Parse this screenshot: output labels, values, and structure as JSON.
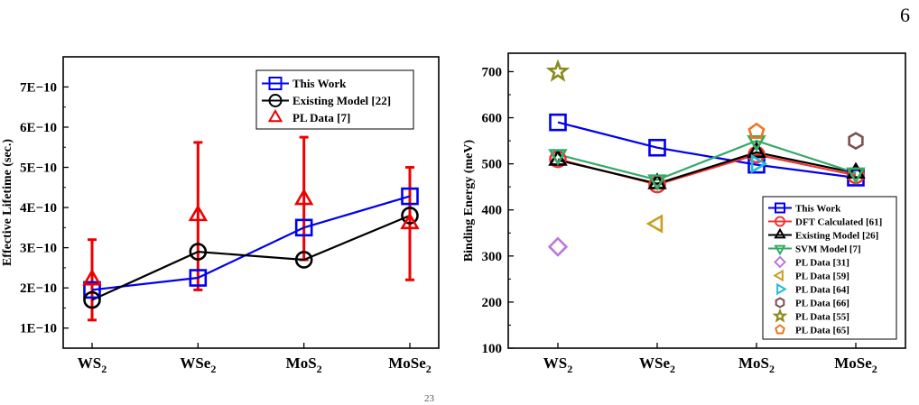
{
  "page": {
    "number": "6",
    "footer": "23"
  },
  "chart_data": [
    {
      "type": "line",
      "categories": [
        "WS2",
        "WSe2",
        "MoS2",
        "MoSe2"
      ],
      "xlabel": "",
      "ylabel": "Effective Lifetime (sec.)",
      "ylim": [
        5e-11,
        7.75e-10
      ],
      "yticks": [
        1e-10,
        2e-10,
        3e-10,
        4e-10,
        5e-10,
        6e-10,
        7e-10
      ],
      "ytick_labels": [
        "1E−10",
        "2E−10",
        "3E−10",
        "4E−10",
        "5E−10",
        "6E−10",
        "7E−10"
      ],
      "legend_position": "top-right",
      "series": [
        {
          "name": "This Work",
          "color": "#0000ee",
          "marker": "square",
          "connected": true,
          "values": [
            1.95e-10,
            2.25e-10,
            3.5e-10,
            4.28e-10
          ]
        },
        {
          "name": "Existing Model [22]",
          "color": "#000000",
          "marker": "circle",
          "connected": true,
          "values": [
            1.7e-10,
            2.9e-10,
            2.7e-10,
            3.8e-10
          ]
        },
        {
          "name": "PL Data [7]",
          "color": "#ee0000",
          "marker": "triangle-up",
          "connected": false,
          "values": [
            2.2e-10,
            3.8e-10,
            4.2e-10,
            3.6e-10
          ],
          "error_low": [
            1.2e-10,
            1.95e-10,
            2.7e-10,
            2.2e-10
          ],
          "error_high": [
            3.2e-10,
            5.62e-10,
            5.75e-10,
            5e-10
          ]
        }
      ]
    },
    {
      "type": "line",
      "categories": [
        "WS2",
        "WSe2",
        "MoS2",
        "MoSe2"
      ],
      "xlabel": "",
      "ylabel": "Binding Energy (meV)",
      "ylim": [
        100,
        740
      ],
      "yticks": [
        100,
        200,
        300,
        400,
        500,
        600,
        700
      ],
      "ytick_labels": [
        "100",
        "200",
        "300",
        "400",
        "500",
        "600",
        "700"
      ],
      "legend_position": "bottom-right",
      "series": [
        {
          "name": "This Work",
          "color": "#0000ee",
          "marker": "square",
          "connected": true,
          "values": [
            590,
            535,
            498,
            470
          ]
        },
        {
          "name": "DFT Calculated [61]",
          "color": "#ee3333",
          "marker": "circle",
          "connected": true,
          "values": [
            510,
            455,
            520,
            475
          ]
        },
        {
          "name": "Existing Model [26]",
          "color": "#000000",
          "marker": "triangle-up",
          "connected": true,
          "values": [
            508,
            457,
            525,
            480
          ]
        },
        {
          "name": "SVM Model [7]",
          "color": "#33aa66",
          "marker": "triangle-down",
          "connected": true,
          "values": [
            520,
            465,
            550,
            480
          ]
        },
        {
          "name": "PL Data [31]",
          "color": "#bb77dd",
          "marker": "diamond",
          "connected": false,
          "values": [
            320,
            null,
            null,
            null
          ]
        },
        {
          "name": "PL Data [59]",
          "color": "#c8a020",
          "marker": "triangle-left",
          "connected": false,
          "values": [
            null,
            370,
            null,
            null
          ]
        },
        {
          "name": "PL Data [64]",
          "color": "#22bbdd",
          "marker": "triangle-right",
          "connected": false,
          "values": [
            null,
            null,
            500,
            null
          ]
        },
        {
          "name": "PL Data [66]",
          "color": "#7a5050",
          "marker": "hexagon",
          "connected": false,
          "values": [
            null,
            null,
            null,
            550
          ]
        },
        {
          "name": "PL Data [55]",
          "color": "#8a8a1a",
          "marker": "star",
          "connected": false,
          "values": [
            700,
            null,
            null,
            null
          ]
        },
        {
          "name": "PL Data [65]",
          "color": "#ee7722",
          "marker": "pentagon",
          "connected": false,
          "values": [
            null,
            null,
            570,
            null
          ]
        }
      ]
    }
  ]
}
